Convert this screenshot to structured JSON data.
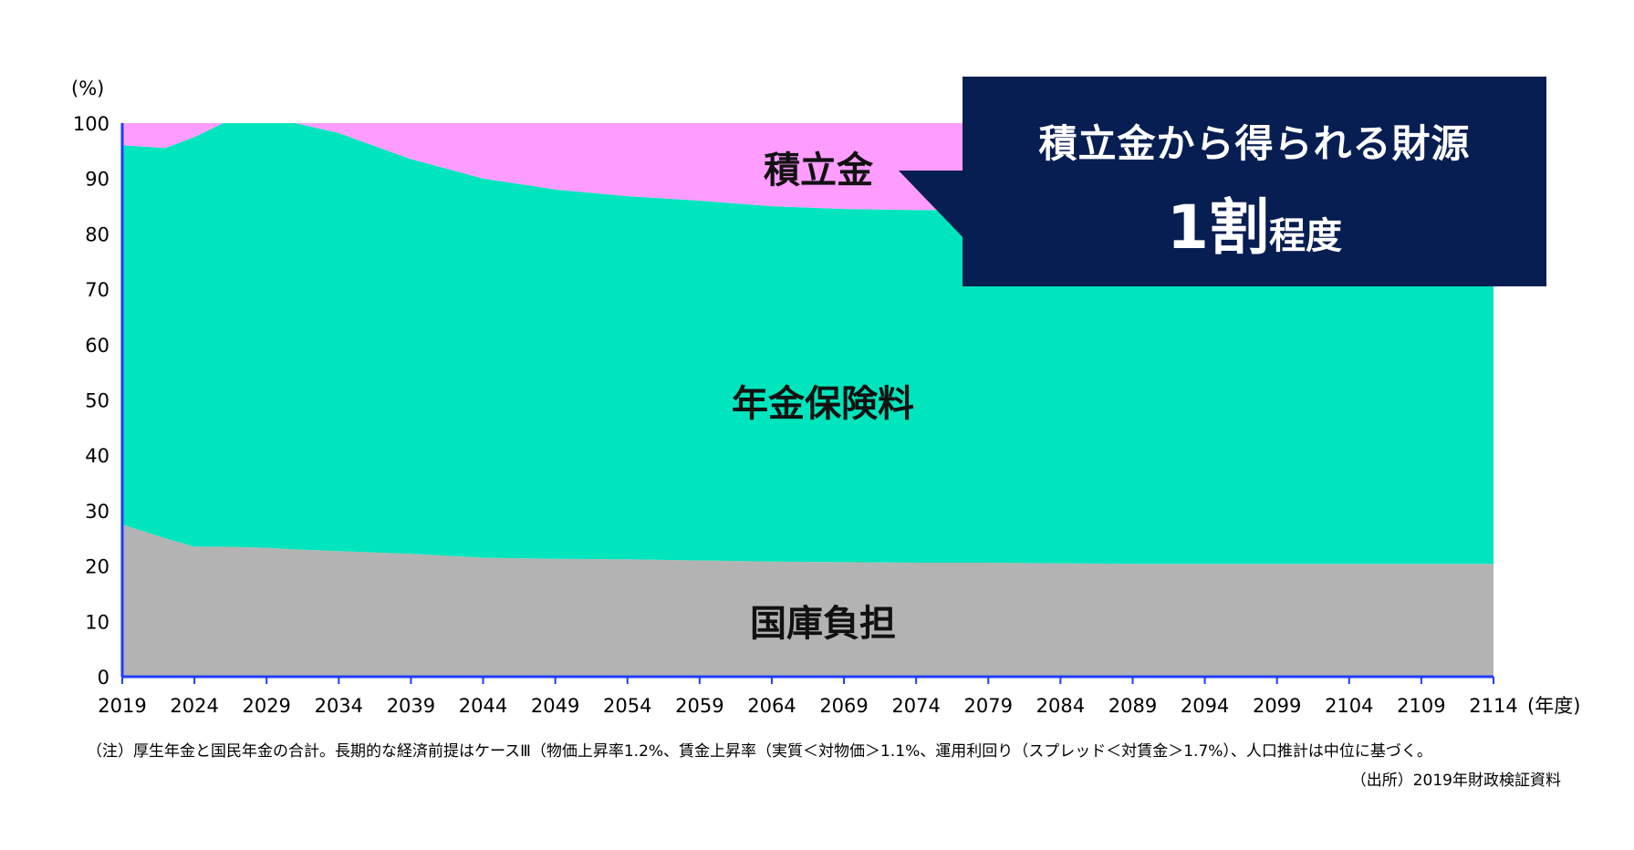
{
  "chart_data": {
    "type": "area",
    "stacked": true,
    "ylabel": "(%)",
    "xlabel": "(年度)",
    "ylim": [
      0,
      100
    ],
    "yticks": [
      0,
      10,
      20,
      30,
      40,
      50,
      60,
      70,
      80,
      90,
      100
    ],
    "xticks": [
      "2019",
      "2024",
      "2029",
      "2034",
      "2039",
      "2044",
      "2049",
      "2054",
      "2059",
      "2064",
      "2069",
      "2074",
      "2079",
      "2084",
      "2089",
      "2094",
      "2099",
      "2104",
      "2109",
      "2114"
    ],
    "x": [
      2019,
      2022,
      2024,
      2026,
      2029,
      2031,
      2034,
      2039,
      2044,
      2049,
      2054,
      2059,
      2064,
      2069,
      2074,
      2079,
      2084,
      2089,
      2094,
      2099,
      2104,
      2109,
      2114
    ],
    "series": [
      {
        "name": "国庫負担",
        "color": "#b3b3b3",
        "values": [
          27.5,
          25,
          23.5,
          23.5,
          23.3,
          23.0,
          22.7,
          22.2,
          21.5,
          21.3,
          21.2,
          21.0,
          20.8,
          20.7,
          20.6,
          20.6,
          20.5,
          20.4,
          20.4,
          20.4,
          20.4,
          20.4,
          20.4
        ]
      },
      {
        "name": "年金保険料",
        "color": "#00e5bd",
        "values": [
          68.5,
          70.5,
          74.0,
          76.5,
          76.7,
          77.0,
          75.5,
          71.3,
          68.5,
          66.7,
          65.6,
          65.0,
          64.2,
          63.8,
          63.7,
          63.7,
          63.7,
          63.7,
          63.7,
          63.7,
          63.7,
          63.7,
          63.7
        ]
      },
      {
        "name": "積立金",
        "color": "#ff9cff",
        "values": [
          4.0,
          4.5,
          2.5,
          0.0,
          0.0,
          0.0,
          1.8,
          6.5,
          10.0,
          12.0,
          13.2,
          14.0,
          15.0,
          15.5,
          15.7,
          15.7,
          15.8,
          15.9,
          15.9,
          15.9,
          15.9,
          15.9,
          15.9
        ]
      }
    ]
  },
  "callout": {
    "line1": "積立金から得られる財源",
    "big": "1割",
    "small": "程度",
    "bg": "#071e52"
  },
  "note": "（注）厚生年金と国民年金の合計。長期的な経済前提はケースⅢ（物価上昇率1.2%、賃金上昇率（実質＜対物価＞1.1%、運用利回り（スプレッド＜対賃金＞1.7%）、人口推計は中位に基づく。",
  "source": "（出所）2019年財政検証資料"
}
